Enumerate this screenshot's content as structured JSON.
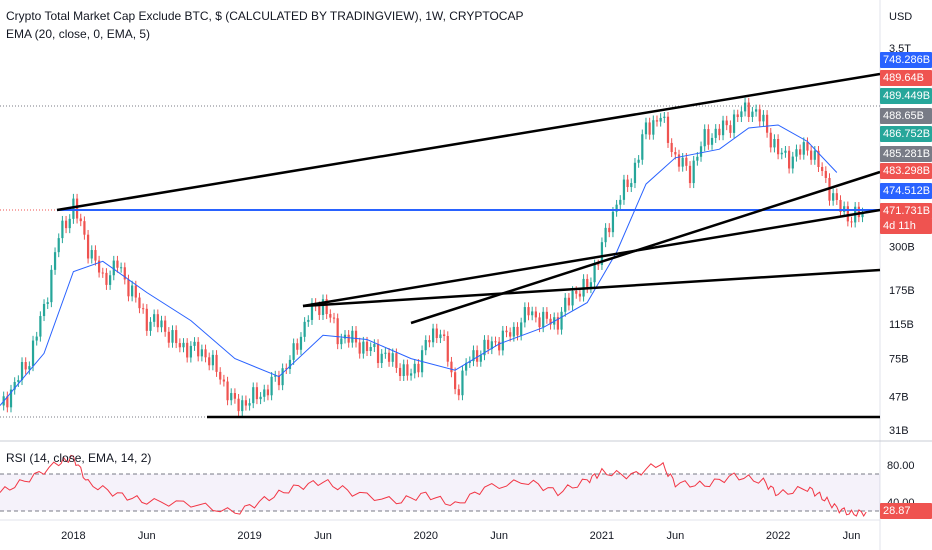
{
  "header": {
    "title": "Crypto Total Market Cap Exclude BTC, $ (CALCULATED BY TRADINGVIEW), 1W, CRYPTOCAP",
    "indicator": "EMA (20, close, 0, EMA, 5)",
    "rsi_indicator": "RSI (14, close, EMA, 14, 2)"
  },
  "colors": {
    "up": "#26a69a",
    "down": "#ef5350",
    "ema": "#2962ff",
    "rsi": "#f23645",
    "trendline": "#000000",
    "support": "#2962ff"
  },
  "chart_data": [
    {
      "type": "candlestick",
      "title": "Crypto Total Market Cap Exclude BTC, $ (CALCULATED BY TRADINGVIEW), 1W, CRYPTOCAP",
      "scale": "log",
      "currency_label": "USD",
      "y_tick_labels": [
        "3.5T",
        "300B",
        "175B",
        "115B",
        "75B",
        "47B",
        "31B"
      ],
      "x_tick_labels": [
        "2018",
        "Jun",
        "2019",
        "Jun",
        "2020",
        "Jun",
        "2021",
        "Jun",
        "2022",
        "Jun"
      ],
      "price_labels": [
        {
          "text": "748.286B",
          "color": "#2962ff"
        },
        {
          "text": "489.64B",
          "color": "#ef5350"
        },
        {
          "text": "489.449B",
          "color": "#26a69a"
        },
        {
          "text": "488.65B",
          "color": "#787b86"
        },
        {
          "text": "486.752B",
          "color": "#26a69a"
        },
        {
          "text": "485.281B",
          "color": "#787b86"
        },
        {
          "text": "483.298B",
          "color": "#ef5350"
        },
        {
          "text": "474.512B",
          "color": "#2962ff"
        },
        {
          "text": "471.731B",
          "color": "#ef5350"
        },
        {
          "text": "4d 11h",
          "color": "#ef5350"
        }
      ],
      "last_value_label": "471.731B",
      "countdown_label": "4d 11h",
      "series": [
        {
          "name": "Crypto Total Market Cap Exclude BTC",
          "style": "candles",
          "x": [
            "2017-08",
            "2017-09",
            "2017-10",
            "2017-11",
            "2017-12",
            "2018-01",
            "2018-02",
            "2018-03",
            "2018-04",
            "2018-05",
            "2018-06",
            "2018-07",
            "2018-08",
            "2018-09",
            "2018-10",
            "2018-11",
            "2018-12",
            "2019-01",
            "2019-02",
            "2019-03",
            "2019-04",
            "2019-05",
            "2019-06",
            "2019-07",
            "2019-08",
            "2019-09",
            "2019-10",
            "2019-11",
            "2019-12",
            "2020-01",
            "2020-02",
            "2020-03",
            "2020-04",
            "2020-05",
            "2020-06",
            "2020-07",
            "2020-08",
            "2020-09",
            "2020-10",
            "2020-11",
            "2020-12",
            "2021-01",
            "2021-02",
            "2021-03",
            "2021-04",
            "2021-05",
            "2021-06",
            "2021-07",
            "2021-08",
            "2021-09",
            "2021-10",
            "2021-11",
            "2021-12",
            "2022-01",
            "2022-02",
            "2022-03",
            "2022-04",
            "2022-05",
            "2022-06",
            "2022-07"
          ],
          "close": [
            40,
            55,
            75,
            140,
            340,
            500,
            300,
            200,
            240,
            170,
            120,
            115,
            90,
            85,
            80,
            60,
            42,
            45,
            50,
            60,
            80,
            130,
            150,
            100,
            95,
            85,
            80,
            70,
            60,
            90,
            110,
            50,
            75,
            85,
            95,
            105,
            135,
            120,
            120,
            170,
            180,
            300,
            520,
            700,
            1300,
            1500,
            900,
            750,
            1150,
            1250,
            1450,
            1700,
            1400,
            950,
            900,
            1050,
            750,
            500,
            430,
            460
          ]
        },
        {
          "name": "EMA (20, close, 0, EMA, 5)",
          "style": "line",
          "x": [
            "2017-08",
            "2017-11",
            "2018-01",
            "2018-03",
            "2018-06",
            "2018-09",
            "2018-12",
            "2019-03",
            "2019-06",
            "2019-09",
            "2019-12",
            "2020-03",
            "2020-06",
            "2020-09",
            "2020-12",
            "2021-02",
            "2021-04",
            "2021-06",
            "2021-09",
            "2021-11",
            "2022-01",
            "2022-03",
            "2022-05"
          ],
          "values": [
            42,
            80,
            220,
            250,
            170,
            120,
            75,
            60,
            100,
            95,
            75,
            65,
            90,
            110,
            150,
            280,
            650,
            900,
            1000,
            1300,
            1350,
            1100,
            750
          ]
        }
      ]
    },
    {
      "type": "line",
      "title": "RSI (14, close, EMA, 14, 2)",
      "y_tick_labels": [
        "80.00",
        "40.00"
      ],
      "last_value_label": "28.87",
      "levels": [
        70,
        30
      ],
      "series": [
        {
          "name": "RSI (14, close, EMA, 14, 2)",
          "x": [
            "2017-08",
            "2017-10",
            "2017-12",
            "2018-01",
            "2018-02",
            "2018-04",
            "2018-06",
            "2018-09",
            "2018-12",
            "2019-02",
            "2019-04",
            "2019-06",
            "2019-08",
            "2019-11",
            "2020-01",
            "2020-03",
            "2020-05",
            "2020-08",
            "2020-10",
            "2020-12",
            "2021-01",
            "2021-03",
            "2021-05",
            "2021-06",
            "2021-08",
            "2021-10",
            "2021-12",
            "2022-01",
            "2022-03",
            "2022-04",
            "2022-05",
            "2022-06",
            "2022-07"
          ],
          "values": [
            50,
            65,
            82,
            88,
            60,
            48,
            40,
            38,
            28,
            42,
            55,
            62,
            50,
            40,
            48,
            36,
            55,
            62,
            50,
            63,
            72,
            68,
            82,
            60,
            58,
            68,
            62,
            48,
            55,
            45,
            33,
            27,
            28.87
          ]
        }
      ]
    }
  ]
}
